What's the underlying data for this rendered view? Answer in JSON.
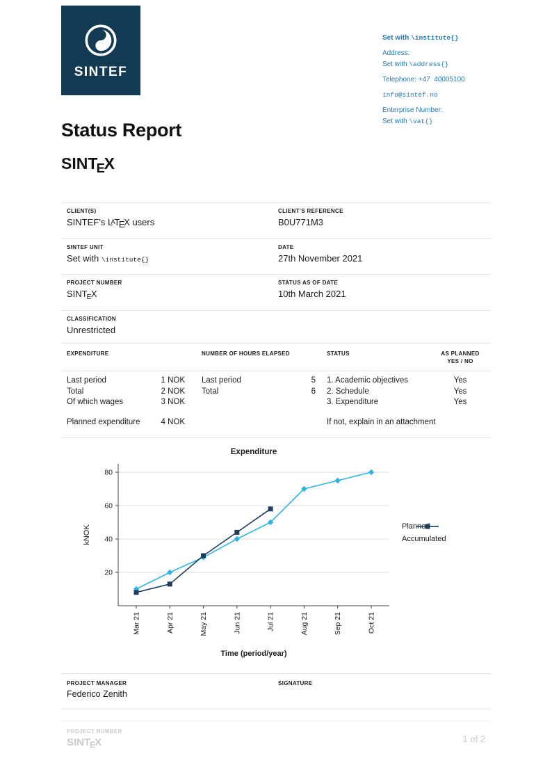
{
  "colors": {
    "navy": "#123a52",
    "blue": "#1d79b5",
    "planned": "#30b4e5",
    "accumulated": "#1d3d5e",
    "grid": "#d9d9d9",
    "rule": "#e3e3e3",
    "footer_gray": "#c7cbcf"
  },
  "logo": {
    "text": "SINTEF"
  },
  "contact": {
    "lines": [
      {
        "parts": [
          [
            "Set with ",
            "bold"
          ],
          [
            "\\institute{}",
            "mono bold"
          ]
        ],
        "gap": true
      },
      {
        "parts": [
          [
            "Address:",
            ""
          ]
        ],
        "gap": false
      },
      {
        "parts": [
          [
            "Set with ",
            ""
          ],
          [
            "\\address{}",
            "mono"
          ]
        ],
        "gap": true
      },
      {
        "parts": [
          [
            "Telephone: +47  40005100",
            ""
          ]
        ],
        "gap": true
      },
      {
        "parts": [
          [
            "info@sintef.no",
            "mono"
          ]
        ],
        "gap": true
      },
      {
        "parts": [
          [
            "Enterprise Number:",
            ""
          ]
        ],
        "gap": false
      },
      {
        "parts": [
          [
            "Set with ",
            ""
          ],
          [
            "\\vat{}",
            "mono"
          ]
        ],
        "gap": false
      }
    ]
  },
  "title": "Status Report",
  "project_logo": "SINTEX",
  "info_table": {
    "rows": [
      {
        "left_label": "CLIENT(S)",
        "left_value": [
          [
            "SINTEF’s ",
            ""
          ],
          [
            "LATEX",
            "latex"
          ],
          [
            " users",
            ""
          ]
        ],
        "right_label": "CLIENT’S REFERENCE",
        "right_value": [
          [
            "B0U771M3",
            ""
          ]
        ]
      },
      {
        "left_label": "SINTEF UNIT",
        "left_value": [
          [
            "Set with ",
            ""
          ],
          [
            "\\institute{}",
            "mono"
          ]
        ],
        "right_label": "DATE",
        "right_value": [
          [
            "27th November 2021",
            ""
          ]
        ]
      },
      {
        "left_label": "PROJECT NUMBER",
        "left_value": [
          [
            "SINTEX",
            "sintex"
          ]
        ],
        "right_label": "STATUS AS OF DATE",
        "right_value": [
          [
            "10th March 2021",
            ""
          ]
        ]
      },
      {
        "left_label": "CLASSIFICATION",
        "left_value": [
          [
            "Unrestricted",
            ""
          ]
        ],
        "right_label": "",
        "right_value": []
      }
    ]
  },
  "expenditure_table": {
    "headers": {
      "col1": "EXPENDITURE",
      "col2": "NUMBER OF HOURS ELAPSED",
      "col3": "STATUS",
      "col4_line1": "AS PLANNED",
      "col4_line2": "YES / NO"
    },
    "rows": [
      {
        "c1": [
          "Last period",
          "1 NOK"
        ],
        "c2": [
          "Last period",
          "5"
        ],
        "c3": "1. Academic objectives",
        "c4": "Yes"
      },
      {
        "c1": [
          "Total",
          "2 NOK"
        ],
        "c2": [
          "Total",
          "6"
        ],
        "c3": "2. Schedule",
        "c4": "Yes"
      },
      {
        "c1": [
          "Of which wages",
          "3 NOK"
        ],
        "c2": null,
        "c3": "3. Expenditure",
        "c4": "Yes"
      }
    ],
    "footer_row": {
      "c1": [
        "Planned expenditure",
        "4 NOK"
      ],
      "c2": null,
      "c3": "If not, explain in an attachment",
      "c4": ""
    }
  },
  "chart_data": {
    "type": "line",
    "title": "Expenditure",
    "xlabel": "Time (period/year)",
    "ylabel": "kNOK",
    "x": [
      "Mar 21",
      "Apr 21",
      "May 21",
      "Jun 21",
      "Jul 21",
      "Aug 21",
      "Sep 21",
      "Oct 21"
    ],
    "series": [
      {
        "name": "Planned",
        "marker": "diamond",
        "color": "#30b4e5",
        "values": [
          10,
          20,
          29,
          40,
          50,
          70,
          75,
          80
        ]
      },
      {
        "name": "Accumulated",
        "marker": "square",
        "color": "#1d3d5e",
        "values": [
          8,
          13,
          30,
          44,
          58,
          null,
          null,
          null
        ]
      }
    ],
    "ylim": [
      0,
      85
    ],
    "yticks": [
      20,
      40,
      60,
      80
    ],
    "grid": true,
    "legend_position": "right"
  },
  "signature": {
    "manager_label": "PROJECT MANAGER",
    "manager_name": "Federico Zenith",
    "signature_label": "SIGNATURE"
  },
  "footer": {
    "project_number_label": "PROJECT NUMBER",
    "project_number": "SINTEX",
    "page": "1 of 2"
  }
}
